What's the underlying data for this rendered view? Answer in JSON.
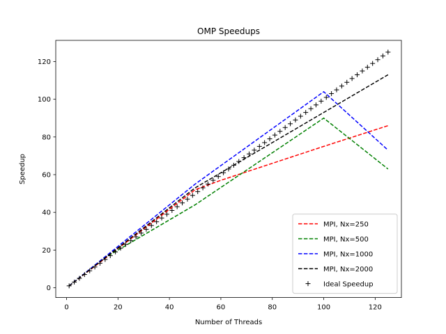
{
  "chart_data": {
    "type": "line",
    "title": "OMP Speedups",
    "xlabel": "Number of Threads",
    "ylabel": "Speedup",
    "xlim": [
      -4.2,
      130.2
    ],
    "ylim": [
      -5.2,
      131.25
    ],
    "xticks": [
      0,
      20,
      40,
      60,
      80,
      100,
      120
    ],
    "yticks": [
      0,
      20,
      40,
      60,
      80,
      100,
      120
    ],
    "grid": false,
    "legend_position": "lower right",
    "series": [
      {
        "name": "MPI, Nx=250",
        "color": "#ff0000",
        "style": "dashed",
        "x": [
          1,
          50,
          60,
          100,
          125
        ],
        "y": [
          1,
          52,
          57,
          75,
          86
        ]
      },
      {
        "name": "MPI, Nx=500",
        "color": "#008000",
        "style": "dashed",
        "x": [
          1,
          15,
          50,
          100,
          125
        ],
        "y": [
          1,
          16,
          44,
          90,
          63
        ]
      },
      {
        "name": "MPI, Nx=1000",
        "color": "#0000ff",
        "style": "dashed",
        "x": [
          1,
          50,
          100,
          125
        ],
        "y": [
          1,
          55,
          104,
          73
        ]
      },
      {
        "name": "MPI, Nx=2000",
        "color": "#000000",
        "style": "dashed",
        "x": [
          1,
          50,
          125
        ],
        "y": [
          1,
          53,
          113
        ]
      },
      {
        "name": "Ideal Speedup",
        "color": "#000000",
        "style": "plus-markers",
        "x": [
          1,
          3,
          5,
          7,
          9,
          11,
          13,
          15,
          17,
          19,
          21,
          23,
          25,
          27,
          29,
          31,
          33,
          35,
          37,
          39,
          41,
          43,
          45,
          47,
          49,
          51,
          53,
          55,
          57,
          59,
          61,
          63,
          65,
          67,
          69,
          71,
          73,
          75,
          77,
          79,
          81,
          83,
          85,
          87,
          89,
          91,
          93,
          95,
          97,
          99,
          101,
          103,
          105,
          107,
          109,
          111,
          113,
          115,
          117,
          119,
          121,
          123,
          125
        ],
        "y": [
          1,
          3,
          5,
          7,
          9,
          11,
          13,
          15,
          17,
          19,
          21,
          23,
          25,
          27,
          29,
          31,
          33,
          35,
          37,
          39,
          41,
          43,
          45,
          47,
          49,
          51,
          53,
          55,
          57,
          59,
          61,
          63,
          65,
          67,
          69,
          71,
          73,
          75,
          77,
          79,
          81,
          83,
          85,
          87,
          89,
          91,
          93,
          95,
          97,
          99,
          101,
          103,
          105,
          107,
          109,
          111,
          113,
          115,
          117,
          119,
          121,
          123,
          125
        ]
      }
    ]
  }
}
